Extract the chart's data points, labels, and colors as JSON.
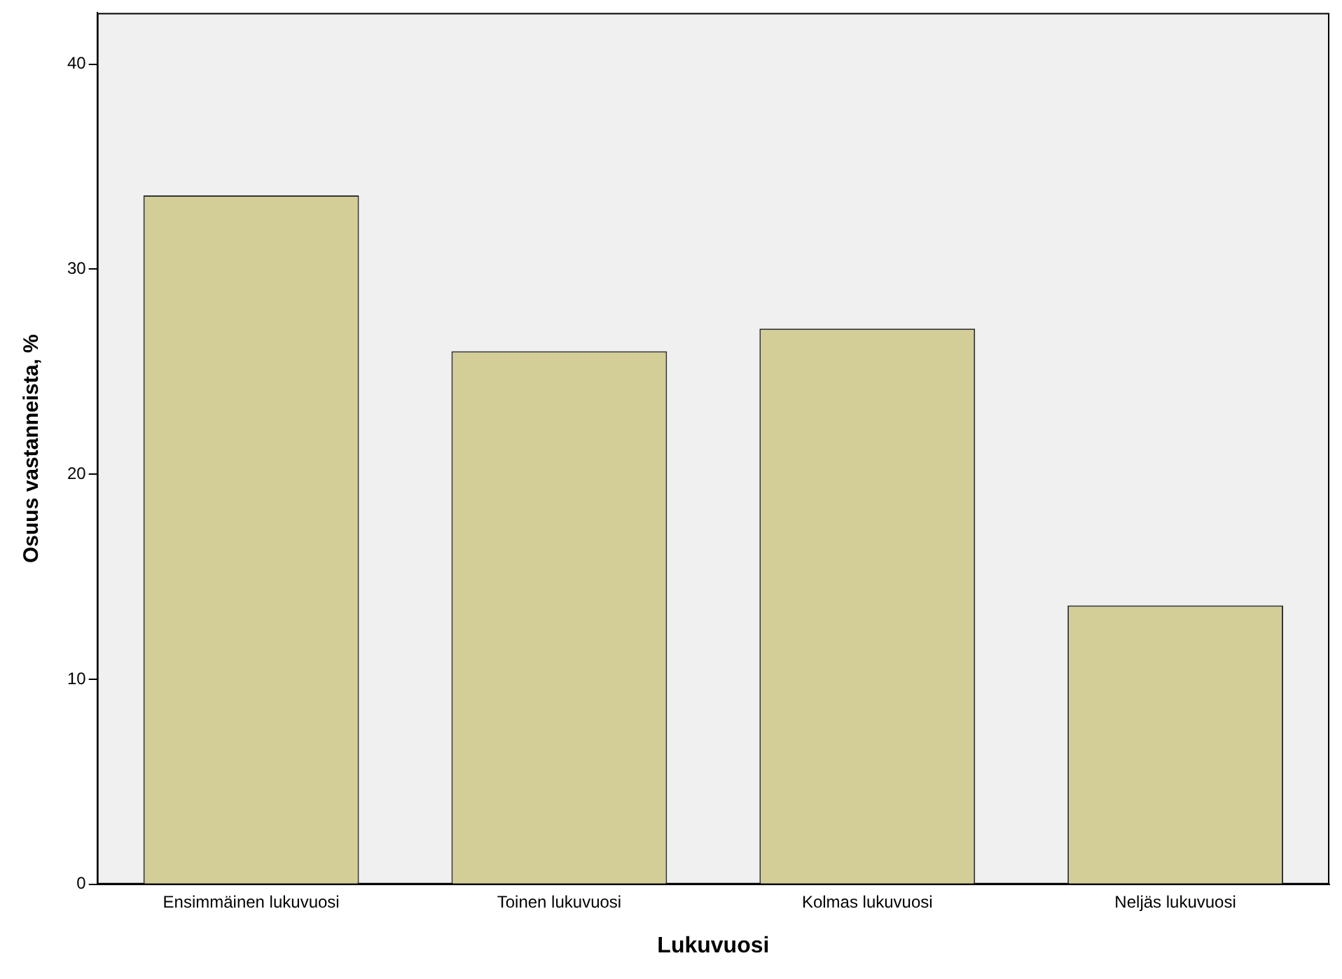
{
  "chart_data": {
    "type": "bar",
    "xlabel": "Lukuvuosi",
    "ylabel": "Osuus vastanneista, %",
    "categories": [
      "Ensimmäinen lukuvuosi",
      "Toinen lukuvuosi",
      "Kolmas lukuvuosi",
      "Neljäs lukuvuosi"
    ],
    "values": [
      33.6,
      26.0,
      27.1,
      13.6
    ],
    "color": "#d3ce97",
    "ylim": [
      0,
      42.5
    ],
    "yticks": [
      0,
      10,
      20,
      30,
      40
    ],
    "grid": false,
    "legend": false
  }
}
